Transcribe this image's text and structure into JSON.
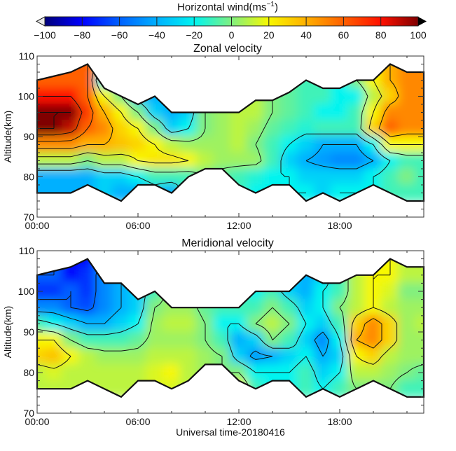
{
  "colorbar": {
    "title": "Horizontal wind(ms",
    "title_sup": "−1",
    "title_close": ")",
    "ticks": [
      "−100",
      "−80",
      "−60",
      "−40",
      "−20",
      "0",
      "20",
      "40",
      "60",
      "80",
      "100"
    ],
    "values": [
      -100,
      -80,
      -60,
      -40,
      -20,
      0,
      20,
      40,
      60,
      80,
      100
    ],
    "colors": [
      "#00007a",
      "#0000ff",
      "#0060ff",
      "#00b0ff",
      "#00f4f0",
      "#80f080",
      "#f8f800",
      "#ffb000",
      "#ff6000",
      "#ff1000",
      "#800000"
    ]
  },
  "chart_data": [
    {
      "type": "heatmap",
      "title": "Zonal velocity",
      "xlabel": "",
      "ylabel": "Altitude(km)",
      "xlim": [
        0,
        23
      ],
      "ylim": [
        70,
        110
      ],
      "xticks": [
        0,
        6,
        12,
        18
      ],
      "xtick_labels": [
        "00:00",
        "06:00",
        "12:00",
        "18:00"
      ],
      "yticks": [
        70,
        80,
        90,
        100,
        110
      ],
      "ytick_labels": [
        "70",
        "80",
        "90",
        "100",
        "110"
      ],
      "hours": [
        0,
        1,
        2,
        3,
        4,
        5,
        6,
        7,
        8,
        9,
        10,
        11,
        12,
        13,
        14,
        15,
        16,
        17,
        18,
        19,
        20,
        21,
        22,
        23
      ],
      "altitudes": [
        108,
        104,
        100,
        96,
        92,
        88,
        84,
        80,
        76
      ],
      "contour_levels": [
        -60,
        -40,
        -20,
        0,
        20,
        40,
        60,
        80,
        100
      ],
      "coverage_top": [
        104,
        105,
        106,
        108,
        102,
        100,
        98,
        100,
        96,
        96,
        96,
        96,
        96,
        99,
        99,
        101,
        104,
        102,
        102,
        104,
        104,
        108,
        106,
        106
      ],
      "coverage_bottom": [
        76,
        76,
        76,
        78,
        76,
        74,
        78,
        78,
        76,
        80,
        82,
        82,
        78,
        76,
        78,
        78,
        74,
        76,
        74,
        76,
        78,
        76,
        74,
        74
      ],
      "values": [
        [
          60,
          60,
          60,
          60,
          20,
          -20,
          -30,
          -40,
          -40,
          -30,
          0,
          5,
          5,
          10,
          0,
          -5,
          -10,
          -10,
          -20,
          0,
          20,
          40,
          50,
          50
        ],
        [
          60,
          60,
          60,
          60,
          -20,
          -30,
          -30,
          -40,
          -40,
          -30,
          0,
          5,
          5,
          10,
          0,
          -5,
          -10,
          -10,
          -20,
          0,
          20,
          40,
          50,
          50
        ],
        [
          80,
          80,
          80,
          60,
          20,
          0,
          -30,
          -40,
          -40,
          -30,
          0,
          5,
          5,
          10,
          0,
          -5,
          -10,
          -10,
          -20,
          -20,
          10,
          30,
          50,
          50
        ],
        [
          100,
          100,
          100,
          70,
          40,
          20,
          0,
          -30,
          -40,
          -30,
          0,
          5,
          10,
          10,
          0,
          -5,
          -10,
          -20,
          -20,
          -10,
          20,
          50,
          50,
          50
        ],
        [
          100,
          100,
          90,
          60,
          50,
          30,
          20,
          0,
          -30,
          -20,
          0,
          5,
          10,
          5,
          -5,
          -10,
          -15,
          -10,
          -10,
          -10,
          30,
          60,
          50,
          50
        ],
        [
          50,
          50,
          50,
          40,
          40,
          35,
          30,
          20,
          10,
          5,
          5,
          5,
          10,
          0,
          -10,
          -20,
          -30,
          -40,
          -40,
          -40,
          -20,
          20,
          20,
          20
        ],
        [
          10,
          10,
          10,
          0,
          10,
          10,
          20,
          25,
          25,
          20,
          10,
          5,
          5,
          5,
          -10,
          -30,
          -40,
          -45,
          -50,
          -50,
          -40,
          -20,
          -10,
          -10
        ],
        [
          -40,
          -40,
          -40,
          -40,
          -30,
          -30,
          -20,
          -10,
          -10,
          -10,
          0,
          -5,
          -10,
          -15,
          -20,
          -20,
          -30,
          -30,
          -30,
          -30,
          -20,
          -10,
          0,
          -10
        ],
        [
          -40,
          -40,
          -40,
          -40,
          -30,
          -40,
          -40,
          -30,
          -40,
          -10,
          0,
          -5,
          -10,
          -20,
          -20,
          -20,
          -20,
          -30,
          -20,
          -20,
          -20,
          -10,
          -10,
          -10
        ]
      ]
    },
    {
      "type": "heatmap",
      "title": "Meridional velocity",
      "xlabel": "Universal time-20180416",
      "ylabel": "Altitude(km)",
      "xlim": [
        0,
        23
      ],
      "ylim": [
        70,
        110
      ],
      "xticks": [
        0,
        6,
        12,
        18
      ],
      "xtick_labels": [
        "00:00",
        "06:00",
        "12:00",
        "18:00"
      ],
      "yticks": [
        70,
        80,
        90,
        100,
        110
      ],
      "ytick_labels": [
        "70",
        "80",
        "90",
        "100",
        "110"
      ],
      "hours": [
        0,
        1,
        2,
        3,
        4,
        5,
        6,
        7,
        8,
        9,
        10,
        11,
        12,
        13,
        14,
        15,
        16,
        17,
        18,
        19,
        20,
        21,
        22,
        23
      ],
      "altitudes": [
        108,
        104,
        100,
        96,
        92,
        88,
        84,
        80,
        76
      ],
      "contour_levels": [
        -60,
        -40,
        -20,
        0,
        20,
        40
      ],
      "coverage_top": [
        104,
        105,
        106,
        108,
        102,
        102,
        98,
        100,
        96,
        96,
        96,
        96,
        96,
        100,
        100,
        100,
        104,
        102,
        102,
        104,
        104,
        108,
        106,
        106
      ],
      "coverage_bottom": [
        76,
        76,
        76,
        78,
        76,
        74,
        78,
        78,
        76,
        78,
        82,
        82,
        78,
        76,
        78,
        78,
        74,
        76,
        74,
        76,
        78,
        76,
        74,
        74
      ],
      "values": [
        [
          -60,
          -60,
          -80,
          -80,
          -50,
          -40,
          -30,
          -10,
          5,
          5,
          -5,
          -10,
          -10,
          -20,
          -10,
          -30,
          -40,
          -30,
          -10,
          10,
          20,
          20,
          10,
          10
        ],
        [
          -60,
          -60,
          -80,
          -70,
          -50,
          -40,
          -30,
          -10,
          5,
          5,
          -5,
          -10,
          -10,
          -20,
          -10,
          -30,
          -40,
          -30,
          -10,
          10,
          20,
          20,
          10,
          10
        ],
        [
          -70,
          -70,
          -60,
          -70,
          -50,
          -40,
          -30,
          -10,
          5,
          5,
          -5,
          -10,
          -10,
          -20,
          -10,
          -30,
          -40,
          -20,
          -10,
          10,
          20,
          15,
          0,
          0
        ],
        [
          -50,
          -50,
          -60,
          -65,
          -50,
          -40,
          -30,
          0,
          5,
          5,
          -5,
          -10,
          -10,
          -10,
          0,
          -10,
          -30,
          -20,
          0,
          10,
          20,
          10,
          5,
          5
        ],
        [
          -10,
          -20,
          -30,
          -40,
          -40,
          -30,
          -20,
          5,
          10,
          10,
          0,
          -20,
          -20,
          0,
          10,
          0,
          -20,
          -30,
          -10,
          30,
          50,
          30,
          5,
          10
        ],
        [
          20,
          20,
          0,
          -10,
          -10,
          -10,
          -5,
          5,
          5,
          5,
          0,
          -10,
          -40,
          -30,
          0,
          -10,
          -30,
          -50,
          -20,
          40,
          50,
          30,
          5,
          5
        ],
        [
          30,
          35,
          20,
          10,
          5,
          5,
          5,
          10,
          10,
          10,
          5,
          0,
          -30,
          -45,
          -40,
          -30,
          -20,
          -40,
          -30,
          20,
          30,
          10,
          5,
          5
        ],
        [
          10,
          15,
          10,
          10,
          10,
          10,
          10,
          15,
          20,
          10,
          5,
          0,
          0,
          -20,
          -20,
          -20,
          -10,
          -30,
          -20,
          10,
          10,
          5,
          0,
          -5
        ],
        [
          10,
          10,
          10,
          10,
          10,
          10,
          10,
          15,
          15,
          10,
          5,
          0,
          20,
          -10,
          -20,
          -20,
          -10,
          -20,
          -10,
          0,
          0,
          0,
          -10,
          -10
        ]
      ]
    }
  ]
}
